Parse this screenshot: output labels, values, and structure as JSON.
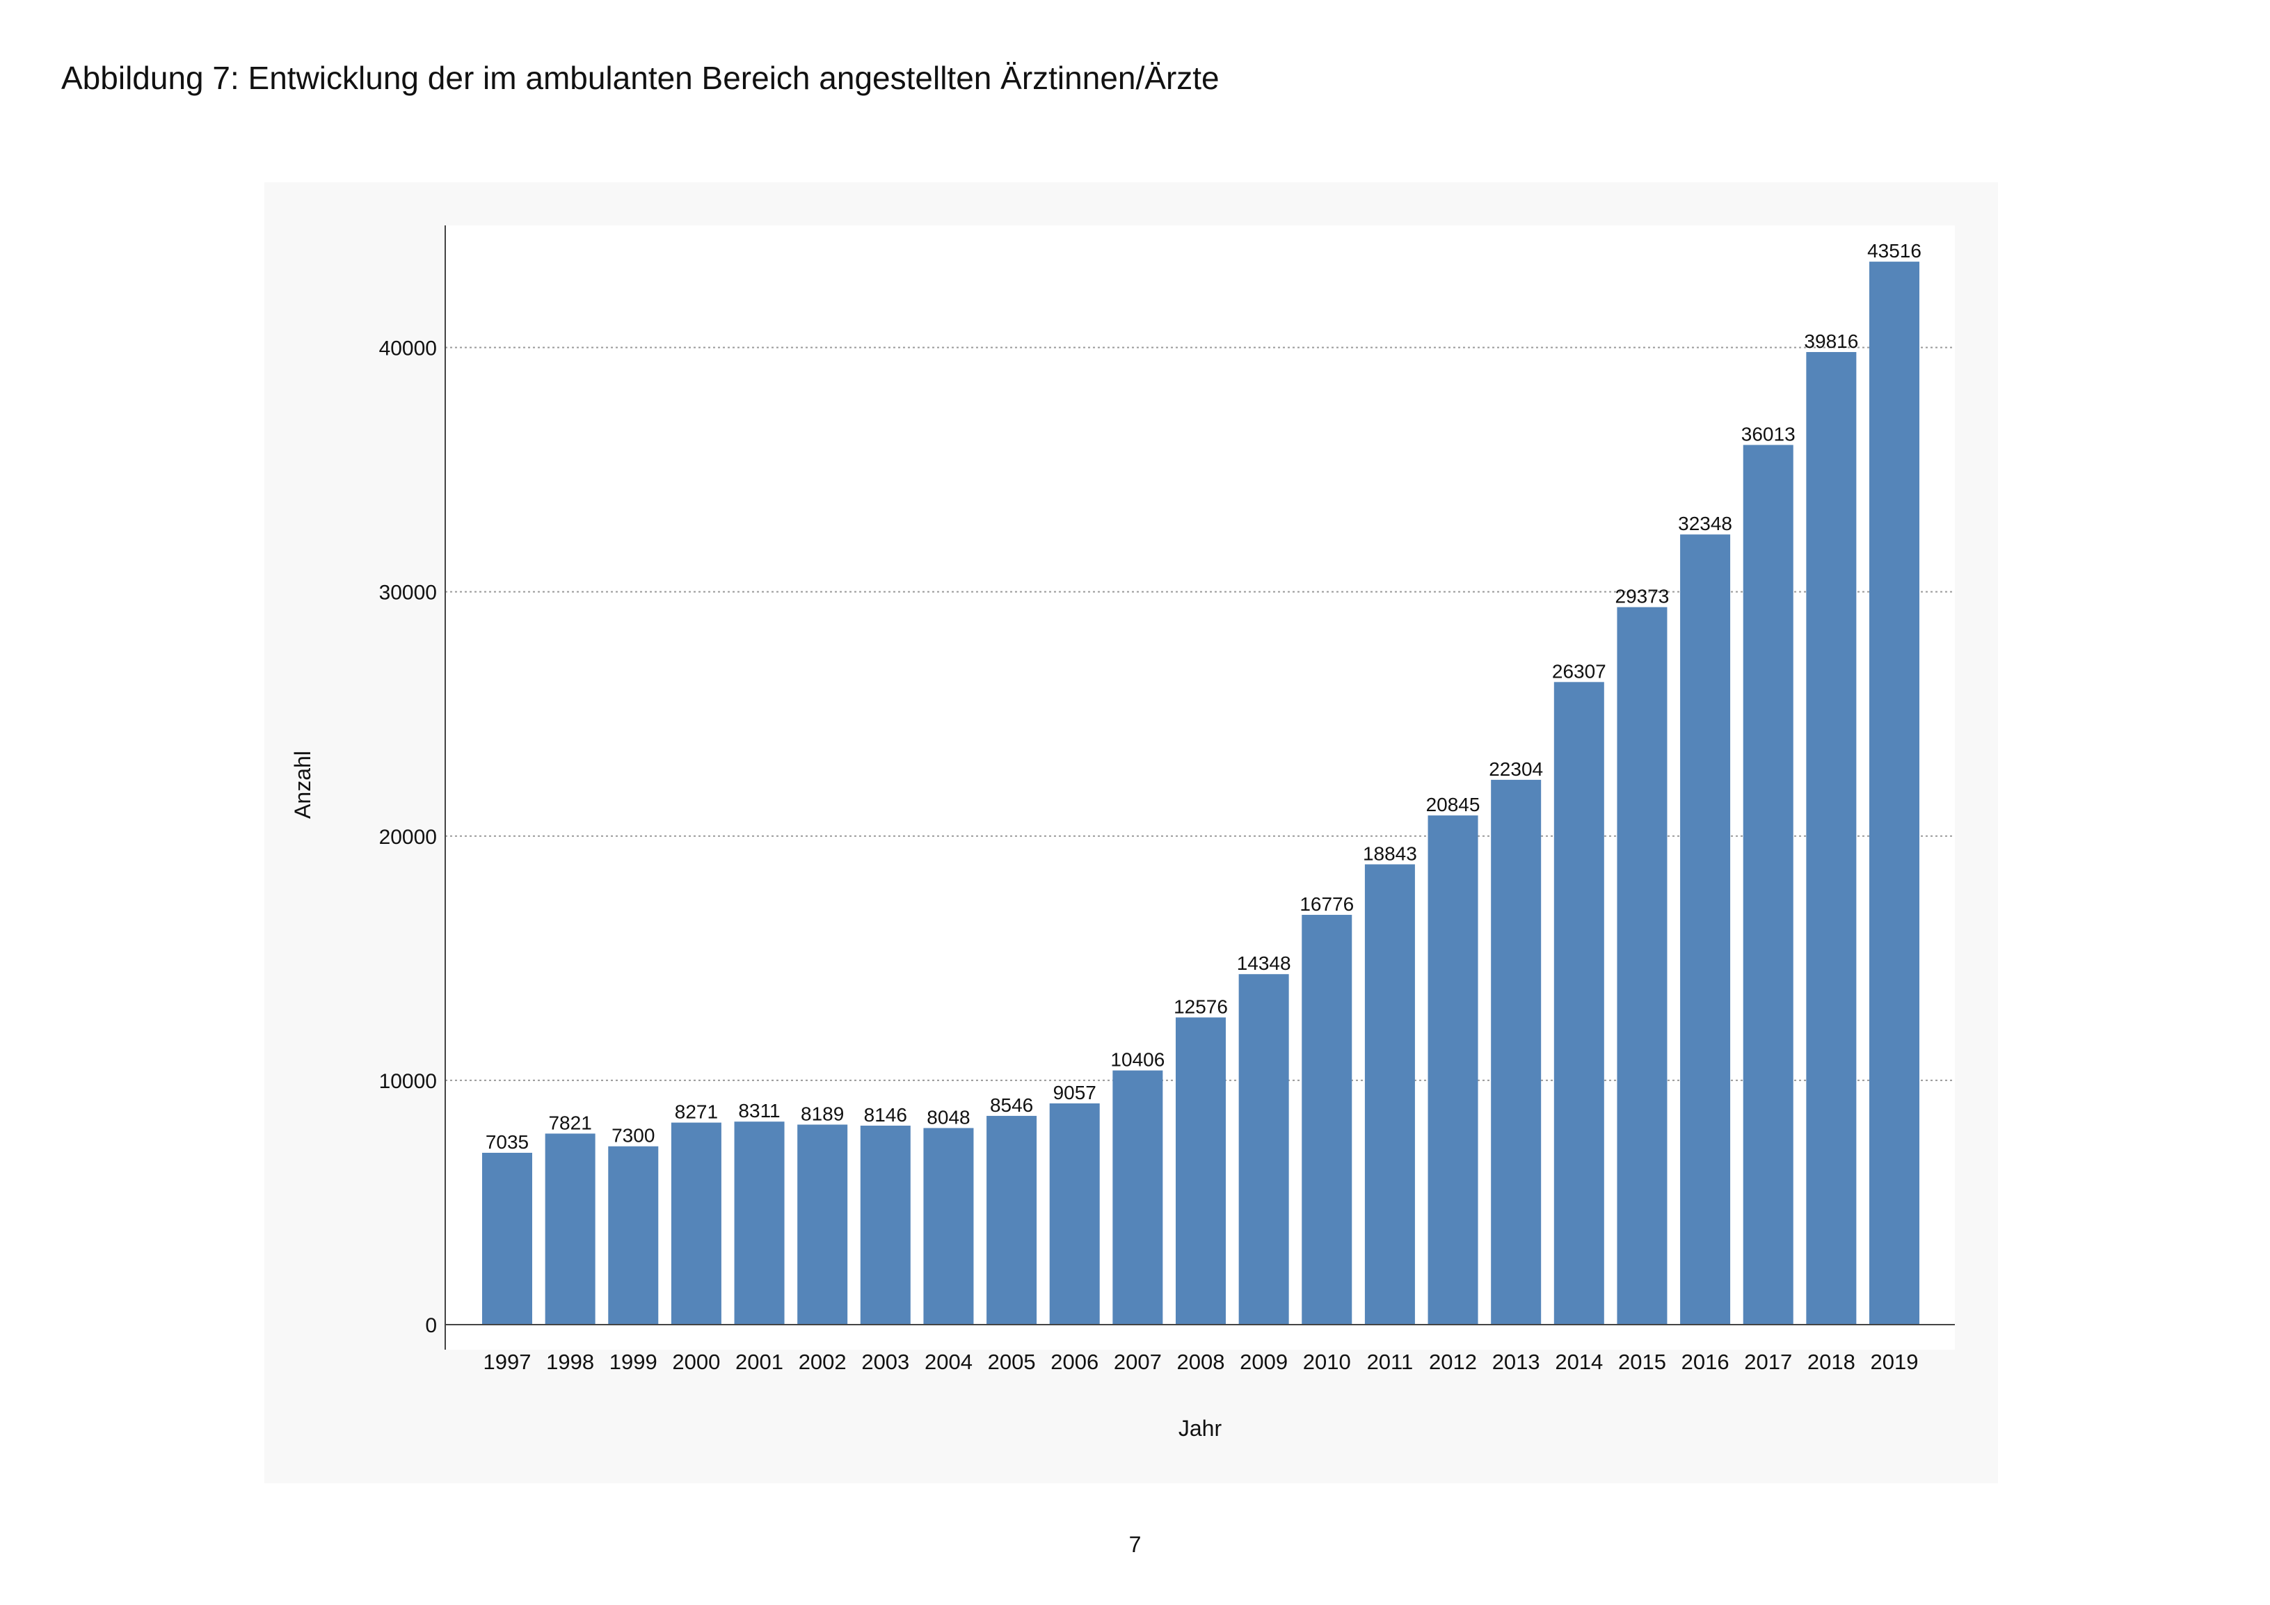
{
  "page": {
    "title": "Abbildung 7: Entwicklung der im ambulanten Bereich angestellten Ärztinnen/Ärzte",
    "page_number": "7"
  },
  "colors": {
    "bar": "#5585b9",
    "panel_background": "#f8f8f8",
    "plot_background": "#ffffff",
    "grid": "#999999"
  },
  "chart_data": {
    "type": "bar",
    "xlabel": "Jahr",
    "ylabel": "Anzahl",
    "ylim": [
      0,
      45000
    ],
    "yticks": [
      0,
      10000,
      20000,
      30000,
      40000
    ],
    "grid": "horizontal dotted",
    "legend": "none",
    "data_labels": "above bars",
    "categories": [
      "1997",
      "1998",
      "1999",
      "2000",
      "2001",
      "2002",
      "2003",
      "2004",
      "2005",
      "2006",
      "2007",
      "2008",
      "2009",
      "2010",
      "2011",
      "2012",
      "2013",
      "2014",
      "2015",
      "2016",
      "2017",
      "2018",
      "2019"
    ],
    "values": [
      7035,
      7821,
      7300,
      8271,
      8311,
      8189,
      8146,
      8048,
      8546,
      9057,
      10406,
      12576,
      14348,
      16776,
      18843,
      20845,
      22304,
      26307,
      29373,
      32348,
      36013,
      39816,
      43516
    ]
  }
}
